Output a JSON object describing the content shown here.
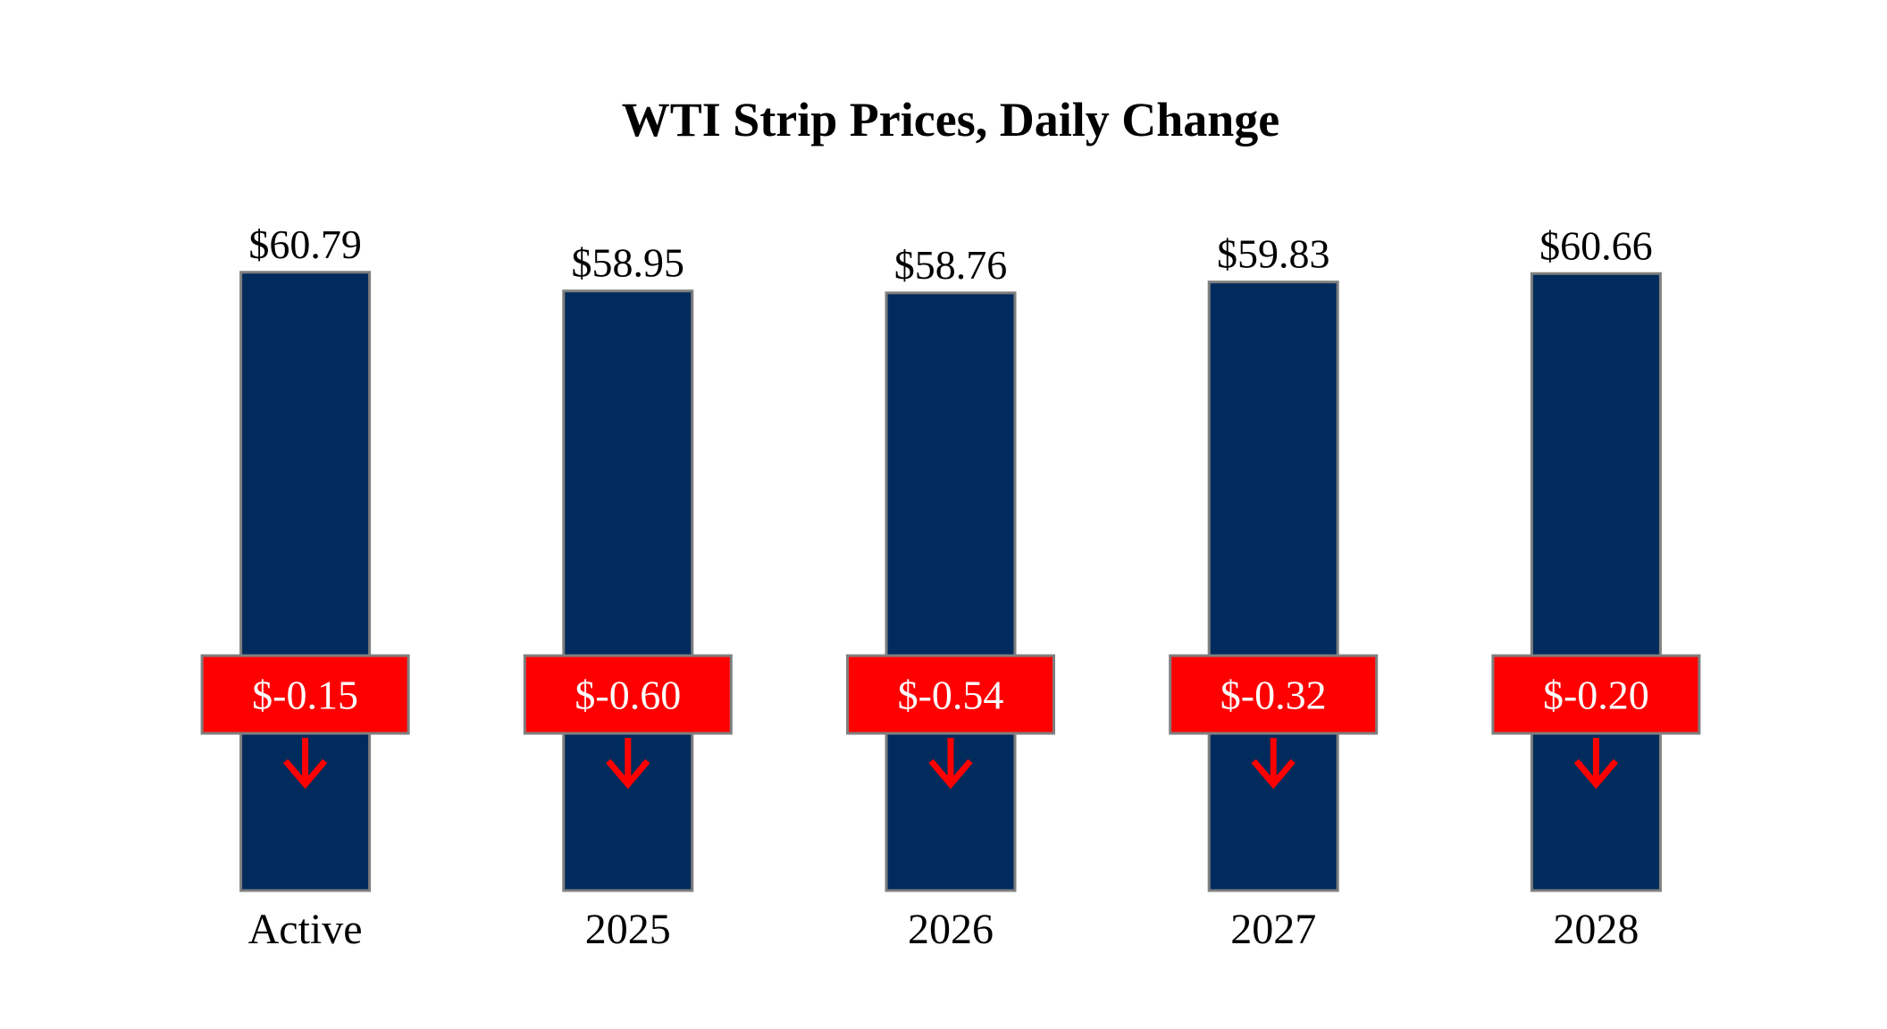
{
  "chart_data": {
    "type": "bar",
    "title": "WTI Strip Prices, Daily Change",
    "categories": [
      "Active",
      "2025",
      "2026",
      "2027",
      "2028"
    ],
    "values": [
      60.79,
      58.95,
      58.76,
      59.83,
      60.66
    ],
    "value_labels": [
      "$60.79",
      "$58.95",
      "$58.76",
      "$59.83",
      "$60.66"
    ],
    "color": "#002b5c",
    "ylim": [
      0,
      62
    ],
    "changes": {
      "values": [
        -0.15,
        -0.6,
        -0.54,
        -0.32,
        -0.2
      ],
      "value_labels": [
        "$-0.15",
        "$-0.60",
        "$-0.54",
        "$-0.32",
        "$-0.20"
      ],
      "color": "#ff0000"
    }
  }
}
